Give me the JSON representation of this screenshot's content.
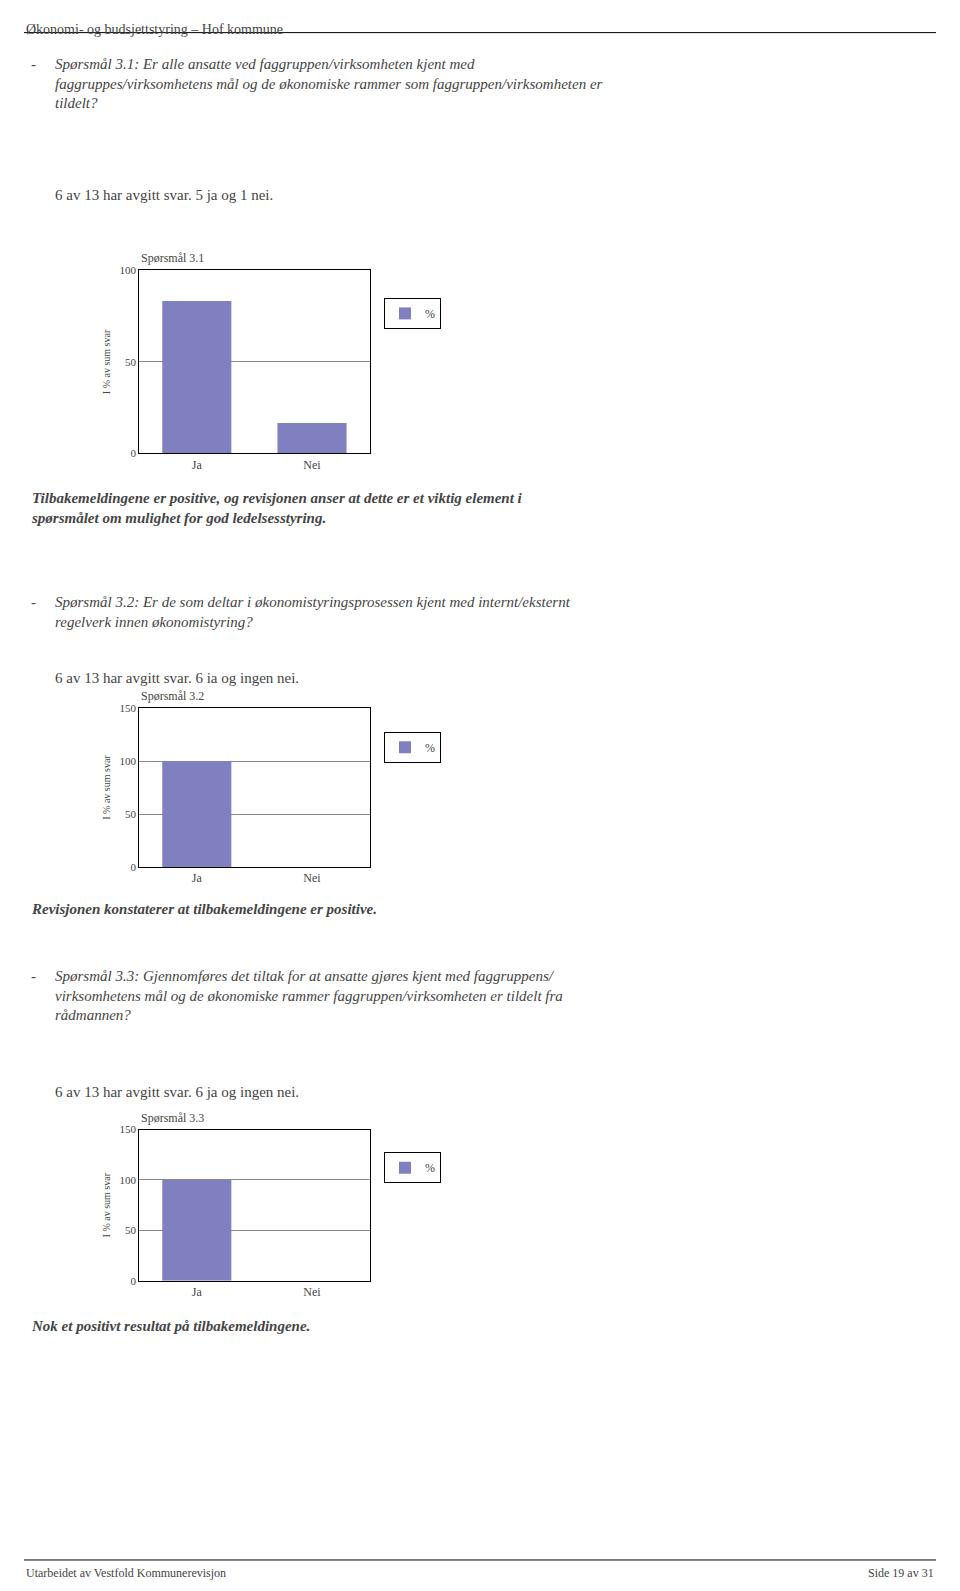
{
  "page_header": "Økonomi- og budsjettstyring – Hof kommune",
  "page_footer_left": "Utarbeidet av Vestfold Kommunerevisjon",
  "page_footer_right": "Side 19 av 31",
  "sections": [
    {
      "bullet": "-",
      "label": "Spørsmål 3.1:",
      "question": "Er alle ansatte ved faggruppen/virksomheten kjent med faggruppes/virksomhetens mål og de økonomiske rammer som faggruppen/virksomheten er tildelt?",
      "stats": "6 av 13 har avgitt svar. 5 ja og 1 nei.",
      "comment": "Tilbakemeldingene er positive, og revisjonen anser at dette er et viktig element i\nspørsmålet om mulighet for god ledelsesstyring."
    },
    {
      "bullet": "-",
      "label": "Spørsmål 3.2:",
      "question": "Er de som deltar i økonomistyringsprosessen kjent med internt/eksternt regelverk innen økonomistyring?",
      "stats": "6 av 13 har avgitt svar. 6 ia og ingen nei.",
      "comment": "Revisjonen konstaterer at tilbakemeldingene er positive."
    },
    {
      "bullet": "-",
      "label": "Spørsmål 3.3:",
      "question": "Gjennomføres det tiltak for at ansatte gjøres kjent med faggruppens/ virksomhetens mål og de økonomiske rammer faggruppen/virksomheten er tildelt fra rådmannen?",
      "stats": "6 av 13 har avgitt svar. 6 ja og ingen nei.",
      "comment": "Nok et positivt resultat på tilbakemeldingene."
    }
  ],
  "chart_data": [
    {
      "type": "bar",
      "title": "Spørsmål 3.1",
      "ylabel": "I % av sum svar",
      "categories": [
        "Ja",
        "Nei"
      ],
      "series": [
        {
          "name": "%",
          "color": "#8080c0",
          "values": [
            83.3,
            16.7
          ]
        }
      ],
      "ylim": [
        0,
        100
      ],
      "yticks": [
        0,
        50,
        100
      ],
      "grid": true,
      "legend": "right"
    },
    {
      "type": "bar",
      "title": "Spørsmål 3.2",
      "ylabel": "I % av sum svar",
      "categories": [
        "Ja",
        "Nei"
      ],
      "series": [
        {
          "name": "%",
          "color": "#8080c0",
          "values": [
            100.0,
            0.0
          ]
        }
      ],
      "ylim": [
        0,
        150
      ],
      "yticks": [
        0,
        50,
        100,
        150
      ],
      "grid": true,
      "legend": "right"
    },
    {
      "type": "bar",
      "title": "Spørsmål 3.3",
      "ylabel": "I % av sum svar",
      "categories": [
        "Ja",
        "Nei"
      ],
      "series": [
        {
          "name": "%",
          "color": "#8080c0",
          "values": [
            100.0,
            0.0
          ]
        }
      ],
      "ylim": [
        0,
        150
      ],
      "yticks": [
        0,
        50,
        100,
        150
      ],
      "grid": true,
      "legend": "right"
    }
  ]
}
